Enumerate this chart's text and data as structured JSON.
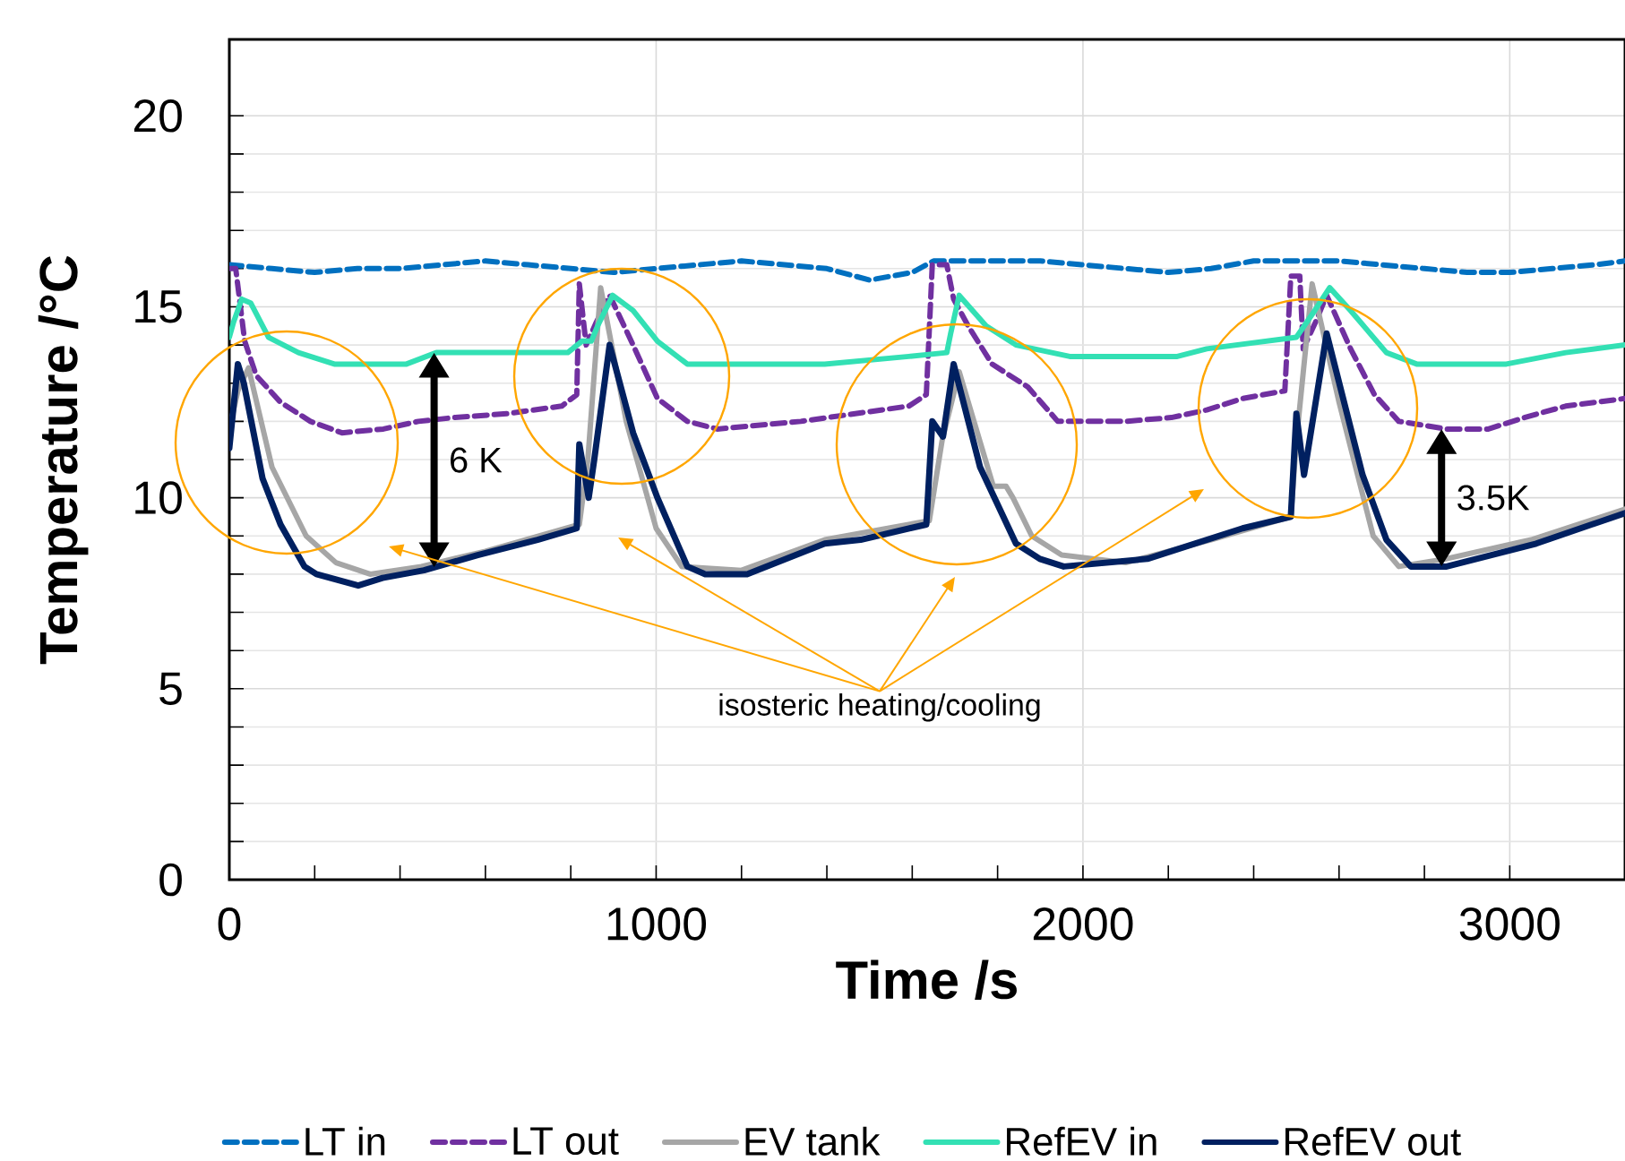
{
  "chart_data": {
    "type": "line",
    "xlabel": "Time /s",
    "ylabel": "Temperature /°C",
    "xlim": [
      0,
      3270
    ],
    "ylim": [
      0,
      22
    ],
    "xticks": [
      0,
      1000,
      2000,
      3000
    ],
    "yticks": [
      0,
      5,
      10,
      15,
      20
    ],
    "grid": true,
    "legend": "bottom",
    "marker": "none",
    "annotations": [
      {
        "text": "6 K",
        "x": 480,
        "y": 13.8
      },
      {
        "text": "3.5K",
        "x": 2840,
        "y": 11.8
      },
      "isosteric heating/cooling"
    ],
    "series": [
      {
        "name": "LT in",
        "color": "#0070c0",
        "line_style": "dashed",
        "x": [
          0,
          100,
          200,
          300,
          400,
          500,
          600,
          700,
          800,
          900,
          1000,
          1100,
          1200,
          1300,
          1400,
          1500,
          1600,
          1650,
          1700,
          1800,
          1900,
          2000,
          2100,
          2200,
          2300,
          2400,
          2500,
          2600,
          2700,
          2800,
          2900,
          3000,
          3100,
          3200,
          3270
        ],
        "values": [
          16.1,
          16.0,
          15.9,
          16.0,
          16.0,
          16.1,
          16.2,
          16.1,
          16.0,
          15.9,
          16.0,
          16.1,
          16.2,
          16.1,
          16.0,
          15.7,
          15.9,
          16.2,
          16.2,
          16.2,
          16.2,
          16.1,
          16.0,
          15.9,
          16.0,
          16.2,
          16.2,
          16.2,
          16.1,
          16.0,
          15.9,
          15.9,
          16.0,
          16.1,
          16.2
        ]
      },
      {
        "name": "LT out",
        "color": "#7030a0",
        "line_style": "dashed",
        "x": [
          0,
          15,
          36,
          63,
          120,
          190,
          264,
          361,
          443,
          527,
          650,
          779,
          814,
          820,
          836,
          860,
          891,
          946,
          1003,
          1073,
          1143,
          1339,
          1592,
          1633,
          1647,
          1681,
          1697,
          1731,
          1787,
          1871,
          1941,
          2100,
          2207,
          2290,
          2374,
          2473,
          2487,
          2508,
          2516,
          2545,
          2571,
          2627,
          2683,
          2740,
          2852,
          2950,
          3034,
          3131,
          3270
        ],
        "values": [
          16.0,
          16.0,
          14.1,
          13.2,
          12.5,
          12.0,
          11.7,
          11.8,
          12.0,
          12.1,
          12.2,
          12.4,
          12.7,
          15.6,
          14.0,
          14.6,
          15.3,
          14.0,
          12.6,
          12.0,
          11.8,
          12.0,
          12.4,
          12.7,
          16.1,
          16.1,
          15.2,
          14.5,
          13.5,
          12.9,
          12.0,
          12.0,
          12.1,
          12.3,
          12.6,
          12.8,
          15.8,
          15.8,
          13.9,
          14.6,
          15.3,
          13.9,
          12.7,
          12.0,
          11.8,
          11.8,
          12.1,
          12.4,
          12.6
        ]
      },
      {
        "name": "EV tank",
        "color": "#a6a6a6",
        "line_style": "solid",
        "x": [
          0,
          20,
          45,
          100,
          180,
          250,
          330,
          450,
          600,
          820,
          840,
          870,
          930,
          1000,
          1060,
          1200,
          1395,
          1640,
          1670,
          1710,
          1790,
          1820,
          1836,
          1880,
          1950,
          2100,
          2300,
          2487,
          2500,
          2537,
          2600,
          2680,
          2740,
          2850,
          3050,
          3270
        ],
        "values": [
          11.8,
          12.8,
          13.4,
          10.8,
          9.0,
          8.3,
          8.0,
          8.2,
          8.6,
          9.3,
          11.0,
          15.5,
          12.0,
          9.2,
          8.2,
          8.1,
          8.9,
          9.4,
          11.5,
          13.3,
          10.3,
          10.3,
          10.0,
          9.0,
          8.5,
          8.3,
          8.9,
          9.5,
          11.5,
          15.6,
          12.5,
          9.0,
          8.2,
          8.4,
          8.9,
          9.7
        ]
      },
      {
        "name": "RefEV in",
        "color": "#33e0b4",
        "line_style": "solid",
        "x": [
          0,
          10,
          29,
          50,
          92,
          162,
          246,
          415,
          485,
          793,
          826,
          848,
          863,
          898,
          946,
          1003,
          1073,
          1395,
          1592,
          1681,
          1690,
          1710,
          1773,
          1843,
          1969,
          2221,
          2290,
          2500,
          2543,
          2578,
          2627,
          2711,
          2782,
          2992,
          3131,
          3270
        ],
        "values": [
          14.2,
          14.6,
          15.2,
          15.1,
          14.2,
          13.8,
          13.5,
          13.5,
          13.8,
          13.8,
          14.1,
          14.1,
          14.5,
          15.3,
          14.9,
          14.1,
          13.5,
          13.5,
          13.7,
          13.8,
          14.3,
          15.3,
          14.5,
          14.0,
          13.7,
          13.7,
          13.9,
          14.2,
          14.9,
          15.5,
          14.9,
          13.8,
          13.5,
          13.5,
          13.8,
          14.0
        ]
      },
      {
        "name": "RefEV out",
        "color": "#002060",
        "line_style": "solid",
        "x": [
          0,
          20,
          34,
          78,
          120,
          176,
          204,
          302,
          359,
          456,
          582,
          722,
          814,
          820,
          842,
          855,
          891,
          946,
          1003,
          1073,
          1115,
          1213,
          1395,
          1479,
          1633,
          1647,
          1672,
          1697,
          1759,
          1843,
          1899,
          1955,
          2151,
          2374,
          2487,
          2500,
          2518,
          2571,
          2655,
          2711,
          2768,
          2852,
          3062,
          3270
        ],
        "values": [
          11.3,
          13.5,
          13.0,
          10.5,
          9.3,
          8.2,
          8.0,
          7.7,
          7.9,
          8.1,
          8.5,
          8.9,
          9.2,
          11.4,
          10.0,
          11.0,
          14.0,
          11.7,
          10.0,
          8.2,
          8.0,
          8.0,
          8.8,
          8.9,
          9.3,
          12.0,
          11.6,
          13.5,
          10.8,
          8.8,
          8.4,
          8.2,
          8.4,
          9.2,
          9.5,
          12.2,
          10.6,
          14.3,
          10.6,
          8.9,
          8.2,
          8.2,
          8.8,
          9.6
        ]
      }
    ]
  }
}
